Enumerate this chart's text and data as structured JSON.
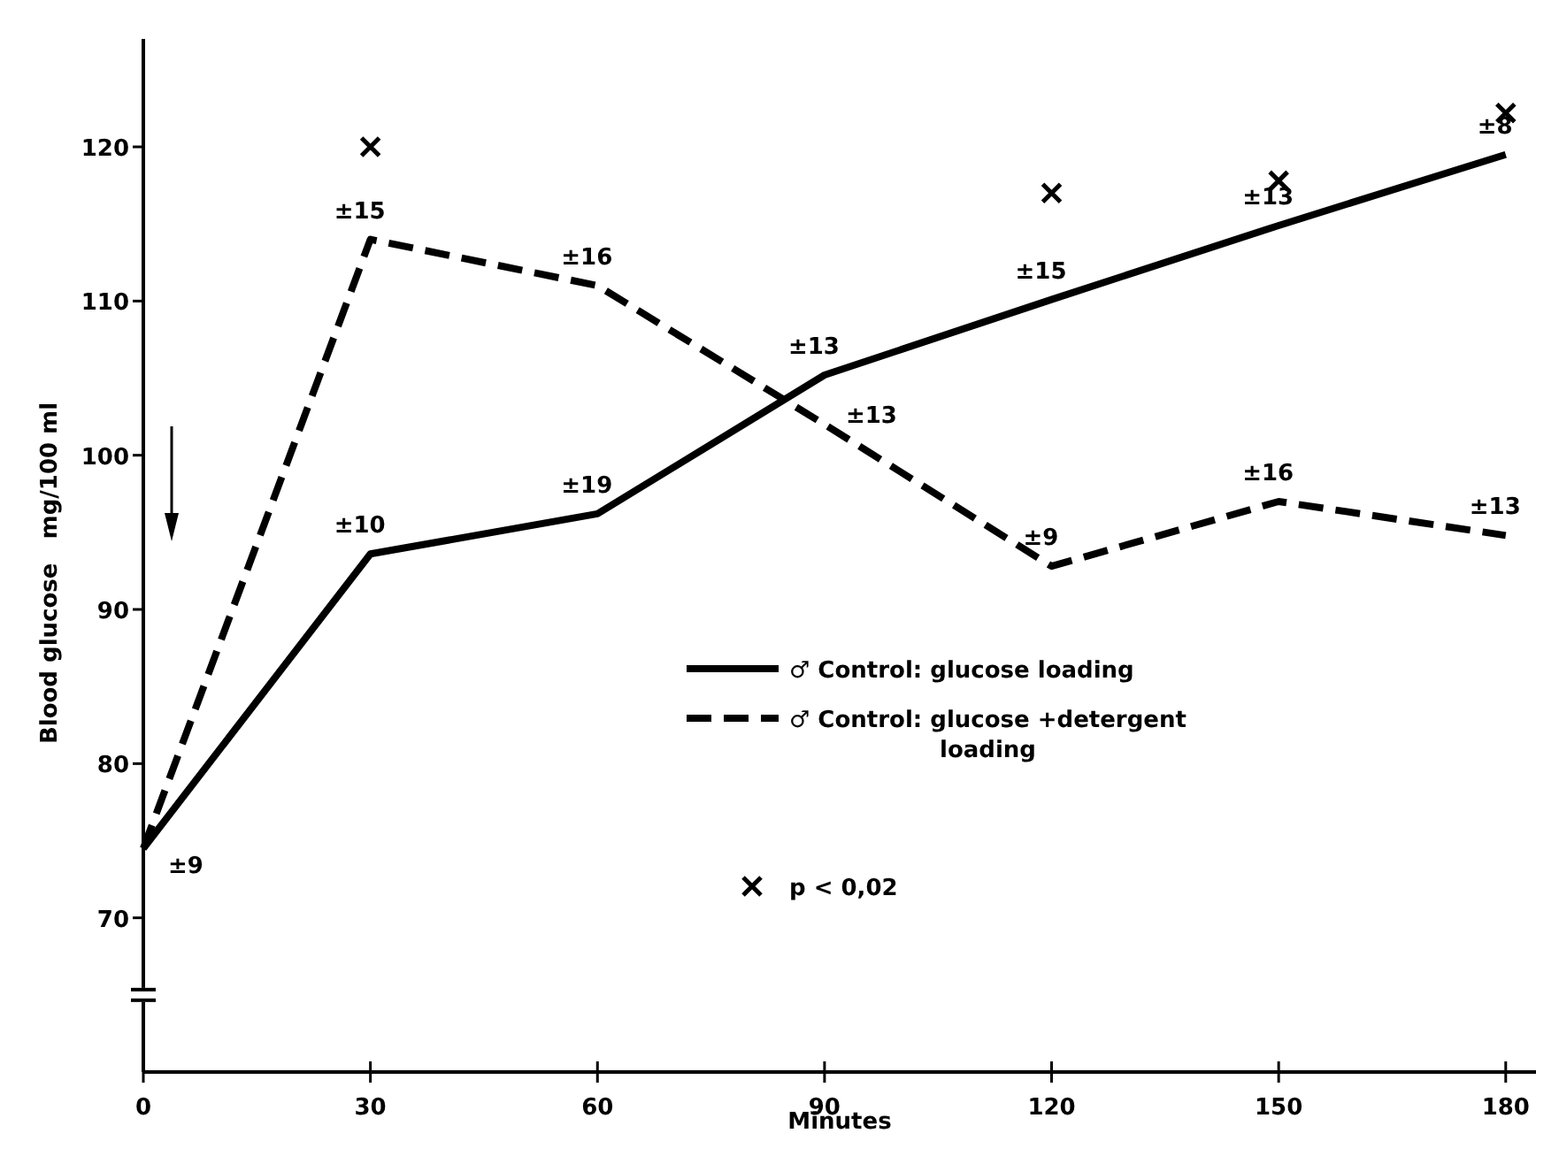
{
  "chart_data": {
    "type": "line",
    "xlabel": "Minutes",
    "ylabel": "Blood glucose   mg/100 ml",
    "x": [
      0,
      30,
      60,
      90,
      120,
      150,
      180
    ],
    "xlim": [
      0,
      184
    ],
    "xticks": [
      0,
      30,
      60,
      90,
      120,
      150,
      180
    ],
    "ylim": [
      60,
      127
    ],
    "yticks": [
      70,
      80,
      90,
      100,
      110,
      120
    ],
    "grid": false,
    "legend": "bottom",
    "marker": "none",
    "series": [
      {
        "name": "♂ Control: glucose loading",
        "color": "#000000",
        "line_style": "solid",
        "values": [
          74.5,
          93.6,
          96.2,
          105.2,
          110.1,
          114.9,
          119.5
        ]
      },
      {
        "name": "♂ Control: glucose +detergent loading",
        "color": "#000000",
        "line_style": "dashed",
        "values": [
          74.5,
          114.0,
          111.0,
          102.0,
          92.8,
          97.0,
          94.8
        ]
      },
      {
        "name": "p < 0,02",
        "type": "scatter",
        "marker": "cross",
        "color": "#000000",
        "x": [
          30,
          120,
          150,
          180
        ],
        "values": [
          120,
          117,
          117.8,
          122.2
        ]
      }
    ],
    "annotations": [
      {
        "text": "±9",
        "x": 0,
        "y": 74.5
      },
      {
        "text": "±10",
        "x": 30,
        "y": 93.6
      },
      {
        "text": "±19",
        "x": 60,
        "y": 96.2
      },
      {
        "text": "±13",
        "x": 90,
        "y": 105.2
      },
      {
        "text": "±15",
        "x": 120,
        "y": 110.1
      },
      {
        "text": "±13",
        "x": 150,
        "y": 114.9
      },
      {
        "text": "±8",
        "x": 180,
        "y": 119.5
      },
      {
        "text": "±15",
        "x": 30,
        "y": 114.0
      },
      {
        "text": "±16",
        "x": 60,
        "y": 111.0
      },
      {
        "text": "±13",
        "x": 90,
        "y": 102.0
      },
      {
        "text": "±9",
        "x": 120,
        "y": 92.8
      },
      {
        "text": "±16",
        "x": 150,
        "y": 97.0
      },
      {
        "text": "±13",
        "x": 180,
        "y": 94.8
      }
    ]
  }
}
